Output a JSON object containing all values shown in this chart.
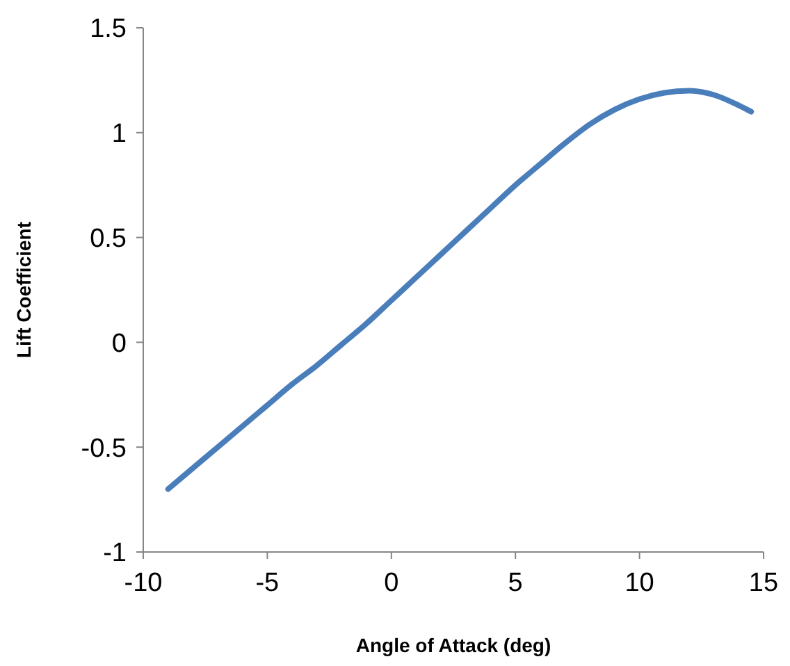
{
  "chart_data": {
    "type": "line",
    "xlabel": "Angle of Attack (deg)",
    "ylabel": "Lift Coefficient",
    "x": [
      -9,
      -8,
      -7,
      -6,
      -5,
      -4,
      -3,
      -2,
      -1,
      0,
      1,
      2,
      3,
      4,
      5,
      6,
      7,
      8,
      9,
      10,
      11,
      12,
      13,
      14,
      14.5
    ],
    "series": [
      {
        "color": "#4a7ebb",
        "values": [
          -0.7,
          -0.6,
          -0.5,
          -0.4,
          -0.3,
          -0.2,
          -0.11,
          -0.01,
          0.09,
          0.2,
          0.31,
          0.42,
          0.53,
          0.64,
          0.75,
          0.85,
          0.95,
          1.04,
          1.11,
          1.16,
          1.19,
          1.2,
          1.18,
          1.13,
          1.1
        ]
      }
    ],
    "xlim": [
      -10,
      15
    ],
    "xticks": [
      -10,
      -5,
      0,
      5,
      10,
      15
    ],
    "ylim": [
      -1,
      1.5
    ],
    "yticks": [
      -1,
      -0.5,
      0,
      0.5,
      1,
      1.5
    ],
    "grid": false,
    "marker": "none",
    "line_style": "solid"
  }
}
